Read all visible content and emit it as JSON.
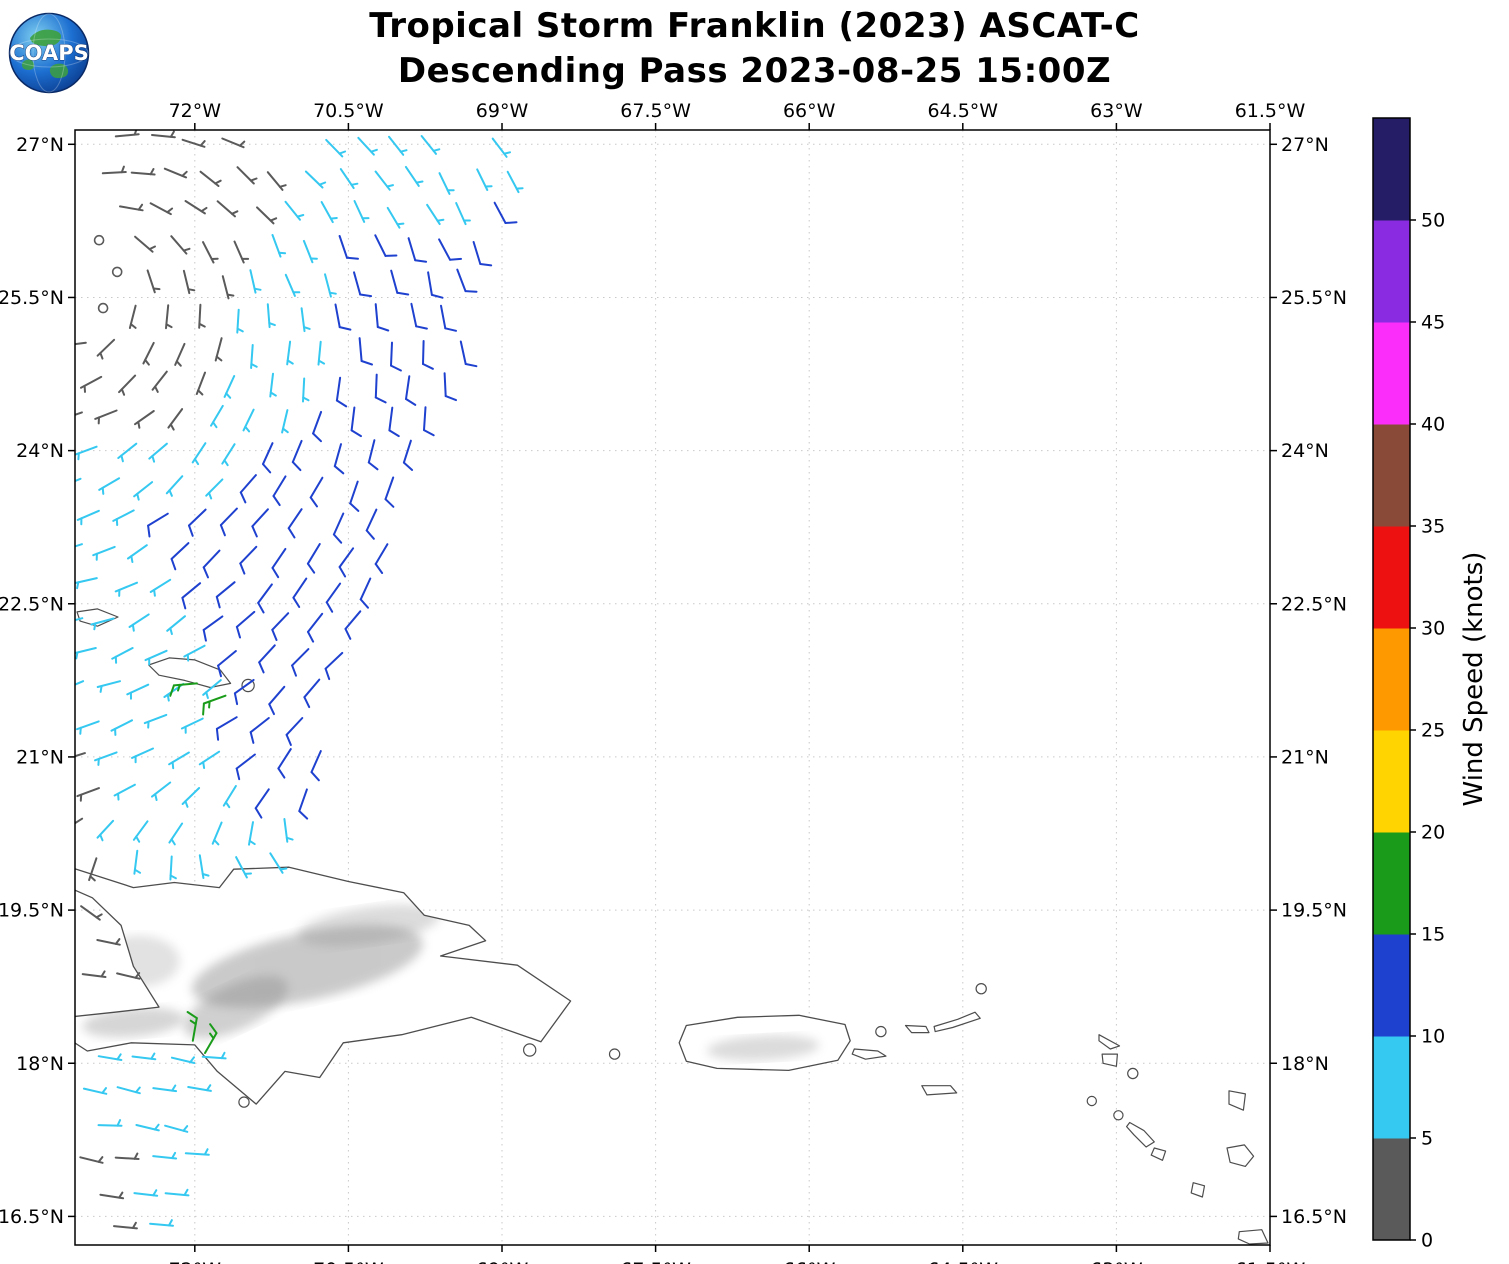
{
  "header": {
    "logo_text": "COAPS",
    "title_line1": "Tropical Storm Franklin (2023) ASCAT-C",
    "title_line2": "Descending Pass 2023-08-25 15:00Z"
  },
  "axes": {
    "x_ticks": [
      {
        "v": -72,
        "label": "72°W"
      },
      {
        "v": -70.5,
        "label": "70.5°W"
      },
      {
        "v": -69,
        "label": "69°W"
      },
      {
        "v": -67.5,
        "label": "67.5°W"
      },
      {
        "v": -66,
        "label": "66°W"
      },
      {
        "v": -64.5,
        "label": "64.5°W"
      },
      {
        "v": -63,
        "label": "63°W"
      },
      {
        "v": -61.5,
        "label": "61.5°W"
      }
    ],
    "y_ticks": [
      {
        "v": 27,
        "label": "27°N"
      },
      {
        "v": 25.5,
        "label": "25.5°N"
      },
      {
        "v": 24,
        "label": "24°N"
      },
      {
        "v": 22.5,
        "label": "22.5°N"
      },
      {
        "v": 21,
        "label": "21°N"
      },
      {
        "v": 19.5,
        "label": "19.5°N"
      },
      {
        "v": 18,
        "label": "18°N"
      },
      {
        "v": 16.5,
        "label": "16.5°N"
      }
    ]
  },
  "colorbar": {
    "title": "Wind Speed (knots)",
    "max_value": 55,
    "ticks": [
      {
        "v": 0,
        "label": "0"
      },
      {
        "v": 5,
        "label": "5"
      },
      {
        "v": 10,
        "label": "10"
      },
      {
        "v": 15,
        "label": "15"
      },
      {
        "v": 20,
        "label": "20"
      },
      {
        "v": 25,
        "label": "25"
      },
      {
        "v": 30,
        "label": "30"
      },
      {
        "v": 35,
        "label": "35"
      },
      {
        "v": 40,
        "label": "40"
      },
      {
        "v": 45,
        "label": "45"
      },
      {
        "v": 50,
        "label": "50"
      }
    ]
  },
  "chart_data": {
    "type": "wind_barb_map",
    "title": "Tropical Storm Franklin (2023) ASCAT-C — Descending Pass 2023-08-25 15:00Z",
    "storm": "Tropical Storm Franklin (2023)",
    "satellite": "ASCAT-C",
    "pass_type": "Descending",
    "datetime_utc": "2023-08-25 15:00Z",
    "units": "knots",
    "lon_range": [
      -73.17,
      -61.5
    ],
    "lat_range": [
      16.22,
      27.14
    ],
    "grid_on": true,
    "speed_colors": [
      {
        "min": 0,
        "max": 5,
        "color": "#5a5a5a",
        "label": "0-5"
      },
      {
        "min": 5,
        "max": 10,
        "color": "#35c8f0",
        "label": "5-10"
      },
      {
        "min": 10,
        "max": 15,
        "color": "#1f41cf",
        "label": "10-15"
      },
      {
        "min": 15,
        "max": 20,
        "color": "#1a9c1a",
        "label": "15-20"
      },
      {
        "min": 20,
        "max": 25,
        "color": "#ffd400",
        "label": "20-25"
      },
      {
        "min": 25,
        "max": 30,
        "color": "#ff9900",
        "label": "25-30"
      },
      {
        "min": 30,
        "max": 35,
        "color": "#ee1111",
        "label": "30-35"
      },
      {
        "min": 35,
        "max": 40,
        "color": "#8a4a38",
        "label": "35-40"
      },
      {
        "min": 40,
        "max": 45,
        "color": "#fb2dfb",
        "label": "40-45"
      },
      {
        "min": 45,
        "max": 50,
        "color": "#8a2be2",
        "label": "45-50"
      },
      {
        "min": 50,
        "max": 55,
        "color": "#251d66",
        "label": "50+"
      }
    ],
    "wind_field": {
      "center": [
        -73.05,
        25.75
      ],
      "calm_radius_deg": 0.52,
      "grid_step_deg": 0.335,
      "inflow_factor": 0.3,
      "right_edge": {
        "lon_at": -68.72,
        "at_lat": 27.1,
        "slope": 0.335
      },
      "blue_zone": {
        "dist_deg": [
          2.4,
          5.5
        ],
        "azimuth_deg": [
          -72,
          10
        ],
        "speed": 12
      },
      "trade_wind_blend": {
        "start_dist_deg": 4.6,
        "full_dist_deg": 7.0,
        "from_vector": [
          1,
          -0.15
        ]
      },
      "speeds": {
        "calm": 0,
        "light": 3,
        "moderate": 7,
        "fresh": 12,
        "strong": 17
      },
      "regions": [
        {
          "name": "upper-swath",
          "lat_min": 19.98,
          "lat_max": 27.08,
          "lon_min": -73.1
        },
        {
          "name": "lower-swath",
          "lat_min": 16.32,
          "lat_max": 18.42,
          "lon_min": -73.1
        },
        {
          "name": "gonave-gulf",
          "lat_min": 18.6,
          "lat_max": 19.55,
          "lon_min": -73.1,
          "lon_max": -72.45,
          "force_speed": 3
        }
      ]
    },
    "highlight_barbs": [
      {
        "lon": -71.98,
        "lat": 21.72,
        "speed": 17,
        "theta_deg": 185
      },
      {
        "lon": -71.7,
        "lat": 21.6,
        "speed": 17,
        "theta_deg": 200
      },
      {
        "lon": -72.02,
        "lat": 18.22,
        "speed": 17,
        "theta_deg": 80
      },
      {
        "lon": -71.9,
        "lat": 18.1,
        "speed": 17,
        "theta_deg": 60
      }
    ],
    "coastlines": {
      "features": [
        {
          "name": "hispaniola",
          "major": true,
          "pts": [
            [
              -73.25,
              19.93
            ],
            [
              -72.6,
              19.72
            ],
            [
              -72.2,
              19.77
            ],
            [
              -71.76,
              19.72
            ],
            [
              -71.62,
              19.9
            ],
            [
              -71.08,
              19.92
            ],
            [
              -70.5,
              19.78
            ],
            [
              -69.96,
              19.67
            ],
            [
              -69.76,
              19.45
            ],
            [
              -69.32,
              19.35
            ],
            [
              -69.16,
              19.2
            ],
            [
              -69.6,
              19.05
            ],
            [
              -68.85,
              18.96
            ],
            [
              -68.33,
              18.61
            ],
            [
              -68.62,
              18.21
            ],
            [
              -69.3,
              18.45
            ],
            [
              -69.98,
              18.28
            ],
            [
              -70.55,
              18.2
            ],
            [
              -70.78,
              17.86
            ],
            [
              -71.12,
              17.92
            ],
            [
              -71.4,
              17.6
            ],
            [
              -71.78,
              17.92
            ],
            [
              -72.0,
              18.18
            ],
            [
              -72.62,
              18.2
            ],
            [
              -73.05,
              18.12
            ],
            [
              -73.25,
              18.25
            ],
            [
              -73.25,
              18.45
            ],
            [
              -72.78,
              18.5
            ],
            [
              -72.35,
              18.55
            ],
            [
              -72.6,
              18.95
            ],
            [
              -72.72,
              19.35
            ],
            [
              -73.0,
              19.62
            ],
            [
              -73.25,
              19.73
            ]
          ]
        },
        {
          "name": "puerto-rico",
          "major": true,
          "pts": [
            [
              -67.2,
              18.37
            ],
            [
              -66.7,
              18.45
            ],
            [
              -66.1,
              18.47
            ],
            [
              -65.65,
              18.38
            ],
            [
              -65.6,
              18.22
            ],
            [
              -65.72,
              18.03
            ],
            [
              -66.2,
              17.93
            ],
            [
              -66.9,
              17.95
            ],
            [
              -67.2,
              18.02
            ],
            [
              -67.27,
              18.2
            ]
          ]
        },
        {
          "name": "mayaguana",
          "pts": [
            [
              -73.15,
              22.42
            ],
            [
              -72.95,
              22.45
            ],
            [
              -72.75,
              22.37
            ],
            [
              -72.95,
              22.28
            ],
            [
              -73.12,
              22.33
            ]
          ]
        },
        {
          "name": "caicos-bank",
          "pts": [
            [
              -72.45,
              21.9
            ],
            [
              -72.25,
              21.97
            ],
            [
              -72.0,
              21.95
            ],
            [
              -71.75,
              21.85
            ],
            [
              -71.65,
              21.72
            ],
            [
              -71.85,
              21.68
            ],
            [
              -72.1,
              21.75
            ],
            [
              -72.35,
              21.8
            ]
          ]
        },
        {
          "name": "east-caicos",
          "dot": [
            -71.48,
            21.7
          ],
          "r": 0.06
        },
        {
          "name": "mona",
          "dot": [
            -67.9,
            18.09
          ],
          "r": 0.05
        },
        {
          "name": "saona",
          "dot": [
            -68.73,
            18.13
          ],
          "r": 0.06
        },
        {
          "name": "beata",
          "dot": [
            -71.52,
            17.62
          ],
          "r": 0.05
        },
        {
          "name": "vieques",
          "pts": [
            [
              -65.56,
              18.14
            ],
            [
              -65.33,
              18.12
            ],
            [
              -65.25,
              18.07
            ],
            [
              -65.45,
              18.04
            ],
            [
              -65.58,
              18.09
            ]
          ]
        },
        {
          "name": "culebra",
          "dot": [
            -65.3,
            18.31
          ],
          "r": 0.05
        },
        {
          "name": "st-thomas",
          "pts": [
            [
              -65.06,
              18.37
            ],
            [
              -64.86,
              18.36
            ],
            [
              -64.83,
              18.3
            ],
            [
              -65.0,
              18.3
            ]
          ]
        },
        {
          "name": "tortola-st-john",
          "pts": [
            [
              -64.78,
              18.36
            ],
            [
              -64.55,
              18.43
            ],
            [
              -64.38,
              18.5
            ],
            [
              -64.33,
              18.44
            ],
            [
              -64.6,
              18.35
            ],
            [
              -64.77,
              18.31
            ]
          ]
        },
        {
          "name": "anegada",
          "dot": [
            -64.32,
            18.73
          ],
          "r": 0.05
        },
        {
          "name": "st-croix",
          "pts": [
            [
              -64.9,
              17.78
            ],
            [
              -64.62,
              17.78
            ],
            [
              -64.56,
              17.71
            ],
            [
              -64.85,
              17.69
            ]
          ]
        },
        {
          "name": "anguilla",
          "pts": [
            [
              -63.17,
              18.28
            ],
            [
              -62.97,
              18.17
            ],
            [
              -63.06,
              18.14
            ],
            [
              -63.17,
              18.22
            ]
          ]
        },
        {
          "name": "st-martin",
          "pts": [
            [
              -63.14,
              18.09
            ],
            [
              -62.99,
              18.09
            ],
            [
              -63.0,
              17.97
            ],
            [
              -63.13,
              18.0
            ]
          ]
        },
        {
          "name": "st-barthelemy",
          "dot": [
            -62.84,
            17.9
          ],
          "r": 0.05
        },
        {
          "name": "saba",
          "dot": [
            -63.24,
            17.63
          ],
          "r": 0.045
        },
        {
          "name": "st-eustatius",
          "dot": [
            -62.98,
            17.49
          ],
          "r": 0.045
        },
        {
          "name": "st-kitts",
          "pts": [
            [
              -62.87,
              17.42
            ],
            [
              -62.73,
              17.34
            ],
            [
              -62.63,
              17.23
            ],
            [
              -62.71,
              17.18
            ],
            [
              -62.83,
              17.3
            ],
            [
              -62.9,
              17.38
            ]
          ]
        },
        {
          "name": "nevis",
          "pts": [
            [
              -62.63,
              17.17
            ],
            [
              -62.52,
              17.14
            ],
            [
              -62.55,
              17.05
            ],
            [
              -62.66,
              17.1
            ]
          ]
        },
        {
          "name": "barbuda",
          "pts": [
            [
              -61.9,
              17.73
            ],
            [
              -61.74,
              17.7
            ],
            [
              -61.76,
              17.54
            ],
            [
              -61.9,
              17.6
            ]
          ]
        },
        {
          "name": "antigua",
          "pts": [
            [
              -61.92,
              17.17
            ],
            [
              -61.75,
              17.2
            ],
            [
              -61.66,
              17.09
            ],
            [
              -61.74,
              16.99
            ],
            [
              -61.89,
              17.03
            ]
          ]
        },
        {
          "name": "montserrat",
          "pts": [
            [
              -62.25,
              16.83
            ],
            [
              -62.14,
              16.8
            ],
            [
              -62.16,
              16.69
            ],
            [
              -62.27,
              16.73
            ]
          ]
        },
        {
          "name": "guadeloupe-north",
          "pts": [
            [
              -61.8,
              16.35
            ],
            [
              -61.58,
              16.37
            ],
            [
              -61.52,
              16.24
            ],
            [
              -61.7,
              16.23
            ],
            [
              -61.81,
              16.28
            ]
          ]
        }
      ],
      "shading": [
        {
          "c": [
            -70.9,
            18.95
          ],
          "rx": 1.15,
          "ry": 0.33,
          "rot": -12,
          "op": 0.45
        },
        {
          "c": [
            -71.6,
            18.55
          ],
          "rx": 0.55,
          "ry": 0.22,
          "rot": -25,
          "op": 0.4
        },
        {
          "c": [
            -70.3,
            19.35
          ],
          "rx": 0.7,
          "ry": 0.18,
          "rot": -8,
          "op": 0.3
        },
        {
          "c": [
            -72.6,
            18.4
          ],
          "rx": 0.5,
          "ry": 0.14,
          "rot": -5,
          "op": 0.35
        },
        {
          "c": [
            -72.55,
            19.0
          ],
          "rx": 0.4,
          "ry": 0.25,
          "rot": 0,
          "op": 0.25
        },
        {
          "c": [
            -66.45,
            18.15
          ],
          "rx": 0.55,
          "ry": 0.12,
          "rot": -3,
          "op": 0.3
        }
      ]
    }
  }
}
